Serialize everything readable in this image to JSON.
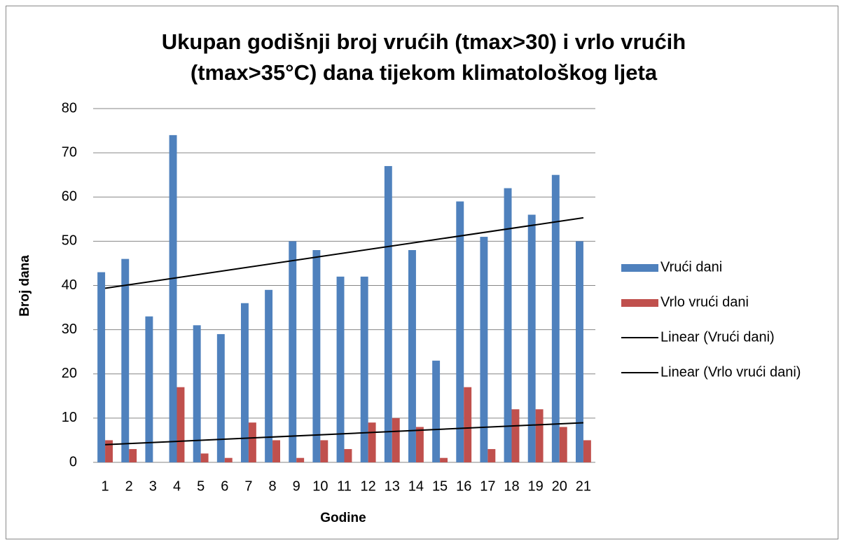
{
  "chart_data": {
    "type": "bar",
    "title": [
      "Ukupan godišnji broj vrućih (tmax>30) i vrlo vrućih",
      "(tmax>35°C) dana tijekom klimatološkog ljeta"
    ],
    "x_label": "Godine",
    "y_label": "Broj dana",
    "categories": [
      "1",
      "2",
      "3",
      "4",
      "5",
      "6",
      "7",
      "8",
      "9",
      "10",
      "11",
      "12",
      "13",
      "14",
      "15",
      "16",
      "17",
      "18",
      "19",
      "20",
      "21"
    ],
    "series": [
      {
        "name": "Vrući dani",
        "color": "#4f81bd",
        "values": [
          43,
          46,
          33,
          74,
          31,
          29,
          36,
          39,
          50,
          48,
          42,
          42,
          67,
          48,
          23,
          59,
          51,
          62,
          56,
          65,
          50
        ],
        "trendline": {
          "name": "Linear (Vrući dani)",
          "color": "#000000"
        }
      },
      {
        "name": "Vrlo vrući dani",
        "color": "#c0504d",
        "values": [
          5,
          3,
          0,
          17,
          2,
          1,
          9,
          5,
          1,
          5,
          3,
          9,
          10,
          8,
          1,
          17,
          3,
          12,
          12,
          8,
          5
        ],
        "trendline": {
          "name": "Linear (Vrlo vrući dani)",
          "color": "#000000"
        }
      }
    ],
    "ylim": [
      0,
      80
    ],
    "yticks": [
      0,
      10,
      20,
      30,
      40,
      50,
      60,
      70,
      80
    ],
    "grid": true,
    "legend": "right"
  }
}
